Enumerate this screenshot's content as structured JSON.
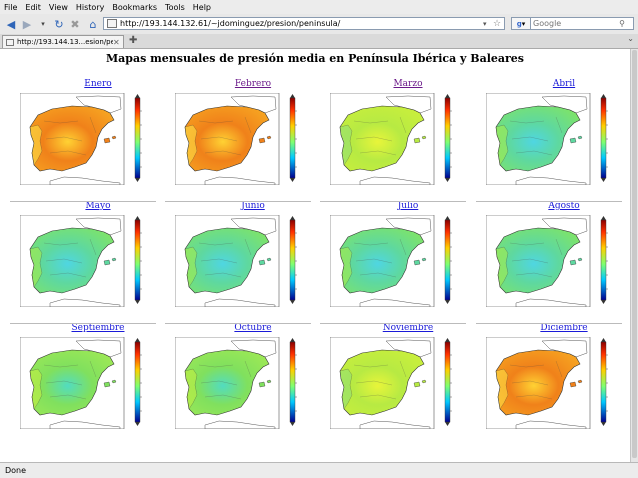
{
  "menu": [
    "File",
    "Edit",
    "View",
    "History",
    "Bookmarks",
    "Tools",
    "Help"
  ],
  "nav": {
    "url": "http://193.144.132.61/~jdominguez/presion/peninsula/",
    "search_placeholder": "Google",
    "back_icon": "back-arrow-icon",
    "forward_icon": "forward-arrow-icon",
    "reload_icon": "reload-icon",
    "stop_icon": "stop-icon",
    "home_icon": "home-icon"
  },
  "tab": {
    "title": "http://193.144.13...esion/peninsula/"
  },
  "page": {
    "title": "Mapas mensuales de presión media en Península Ibérica y Baleares",
    "months": [
      {
        "name": "Enero",
        "visited": false,
        "palette": "warm"
      },
      {
        "name": "Febrero",
        "visited": true,
        "palette": "warm"
      },
      {
        "name": "Marzo",
        "visited": true,
        "palette": "yellowgreen"
      },
      {
        "name": "Abril",
        "visited": false,
        "palette": "cool"
      },
      {
        "name": "Mayo",
        "visited": false,
        "palette": "cool"
      },
      {
        "name": "Junio",
        "visited": false,
        "palette": "cool"
      },
      {
        "name": "Julio",
        "visited": false,
        "palette": "cool"
      },
      {
        "name": "Agosto",
        "visited": false,
        "palette": "cool"
      },
      {
        "name": "Septiembre",
        "visited": false,
        "palette": "green"
      },
      {
        "name": "Octubre",
        "visited": false,
        "palette": "green"
      },
      {
        "name": "Noviembre",
        "visited": false,
        "palette": "yellowgreen"
      },
      {
        "name": "Diciembre",
        "visited": false,
        "palette": "warm"
      }
    ]
  },
  "status": {
    "text": "Done"
  },
  "colors": {
    "link": "#1a1ad8",
    "visited": "#6b1a8a"
  }
}
